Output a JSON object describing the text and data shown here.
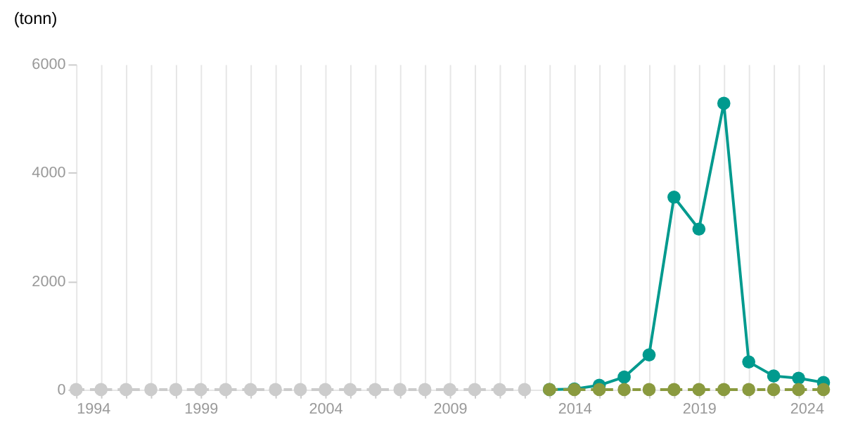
{
  "chart_data": {
    "type": "line",
    "ylabel": "(tonn)",
    "xlim": [
      1994,
      2024
    ],
    "xticks": [
      1994,
      {
        "value": 1995,
        "label": null
      },
      {
        "value": 1996,
        "label": null
      },
      {
        "value": 1997,
        "label": null
      },
      {
        "value": 1998,
        "label": null
      },
      1999,
      {
        "value": 2000,
        "label": null
      },
      {
        "value": 2001,
        "label": null
      },
      {
        "value": 2002,
        "label": null
      },
      {
        "value": 2003,
        "label": null
      },
      2004,
      {
        "value": 2005,
        "label": null
      },
      {
        "value": 2006,
        "label": null
      },
      {
        "value": 2007,
        "label": null
      },
      {
        "value": 2008,
        "label": null
      },
      2009,
      {
        "value": 2010,
        "label": null
      },
      {
        "value": 2011,
        "label": null
      },
      {
        "value": 2012,
        "label": null
      },
      {
        "value": 2013,
        "label": null
      },
      2014,
      {
        "value": 2015,
        "label": null
      },
      {
        "value": 2016,
        "label": null
      },
      {
        "value": 2017,
        "label": null
      },
      {
        "value": 2018,
        "label": null
      },
      2019,
      {
        "value": 2020,
        "label": null
      },
      {
        "value": 2021,
        "label": null
      },
      {
        "value": 2022,
        "label": null
      },
      {
        "value": 2023,
        "label": null
      },
      2024
    ],
    "ylim": [
      0,
      6000
    ],
    "yticks": [
      0,
      2000,
      4000,
      6000
    ],
    "grid": "x",
    "marker": "circle",
    "series": [
      {
        "color": "#cccccc",
        "line_style": "dashed",
        "x": [
          1994,
          1995,
          1996,
          1997,
          1998,
          1999,
          2000,
          2001,
          2002,
          2003,
          2004,
          2005,
          2006,
          2007,
          2008,
          2009,
          2010,
          2011,
          2012
        ],
        "values": [
          0,
          0,
          0,
          0,
          0,
          0,
          0,
          0,
          0,
          0,
          0,
          0,
          0,
          0,
          0,
          0,
          0,
          0,
          0
        ]
      },
      {
        "color": "#009a8e",
        "line_style": "solid",
        "x": [
          2013,
          2014,
          2015,
          2016,
          2017,
          2018,
          2019,
          2020,
          2021,
          2022,
          2023,
          2024
        ],
        "values": [
          0,
          10,
          80,
          230,
          640,
          3550,
          2960,
          5280,
          510,
          250,
          210,
          130
        ]
      },
      {
        "color": "#8a9a3f",
        "line_style": "dashed",
        "x": [
          2013,
          2014,
          2015,
          2016,
          2017,
          2018,
          2019,
          2020,
          2021,
          2022,
          2023,
          2024
        ],
        "values": [
          0,
          0,
          0,
          0,
          0,
          0,
          0,
          0,
          0,
          0,
          0,
          0
        ]
      }
    ]
  }
}
